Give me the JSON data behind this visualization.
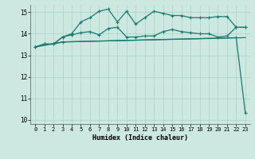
{
  "xlabel": "Humidex (Indice chaleur)",
  "xlim": [
    -0.5,
    23.5
  ],
  "ylim": [
    9.8,
    15.35
  ],
  "yticks": [
    10,
    11,
    12,
    13,
    14,
    15
  ],
  "xticks": [
    0,
    1,
    2,
    3,
    4,
    5,
    6,
    7,
    8,
    9,
    10,
    11,
    12,
    13,
    14,
    15,
    16,
    17,
    18,
    19,
    20,
    21,
    22,
    23
  ],
  "bg_color": "#cce8e0",
  "grid_color": "#aad4c8",
  "line_color": "#1a7a6e",
  "series1_x": [
    0,
    1,
    2,
    3,
    4,
    5,
    6,
    7,
    8,
    9,
    10,
    11,
    12,
    13,
    14,
    15,
    16,
    17,
    18,
    19,
    20,
    21,
    22,
    23
  ],
  "series1_y": [
    13.38,
    13.52,
    13.52,
    13.62,
    13.63,
    13.64,
    13.65,
    13.66,
    13.67,
    13.68,
    13.69,
    13.7,
    13.71,
    13.72,
    13.73,
    13.74,
    13.75,
    13.76,
    13.77,
    13.78,
    13.79,
    13.8,
    13.81,
    13.82
  ],
  "series2_x": [
    0,
    1,
    2,
    3,
    4,
    5,
    6,
    7,
    8,
    9,
    10,
    11,
    12,
    13,
    14,
    15,
    16,
    17,
    18,
    19,
    20,
    21,
    22,
    23
  ],
  "series2_y": [
    13.38,
    13.52,
    13.52,
    13.85,
    13.95,
    14.05,
    14.1,
    13.95,
    14.25,
    14.3,
    13.85,
    13.85,
    13.9,
    13.9,
    14.1,
    14.2,
    14.1,
    14.05,
    14.0,
    14.0,
    13.85,
    13.9,
    14.3,
    14.3
  ],
  "series3_x": [
    0,
    1,
    2,
    3,
    4,
    5,
    6,
    7,
    8,
    9,
    10,
    11,
    12,
    13,
    14,
    15,
    16,
    17,
    18,
    19,
    20,
    21,
    22,
    23
  ],
  "series3_y": [
    13.38,
    13.52,
    13.52,
    13.85,
    14.0,
    14.55,
    14.75,
    15.05,
    15.15,
    14.55,
    15.05,
    14.45,
    14.75,
    15.05,
    14.95,
    14.85,
    14.85,
    14.75,
    14.75,
    14.75,
    14.8,
    14.8,
    14.3,
    14.3
  ],
  "series4_x": [
    0,
    3,
    22,
    23
  ],
  "series4_y": [
    13.38,
    13.62,
    13.82,
    10.3
  ]
}
